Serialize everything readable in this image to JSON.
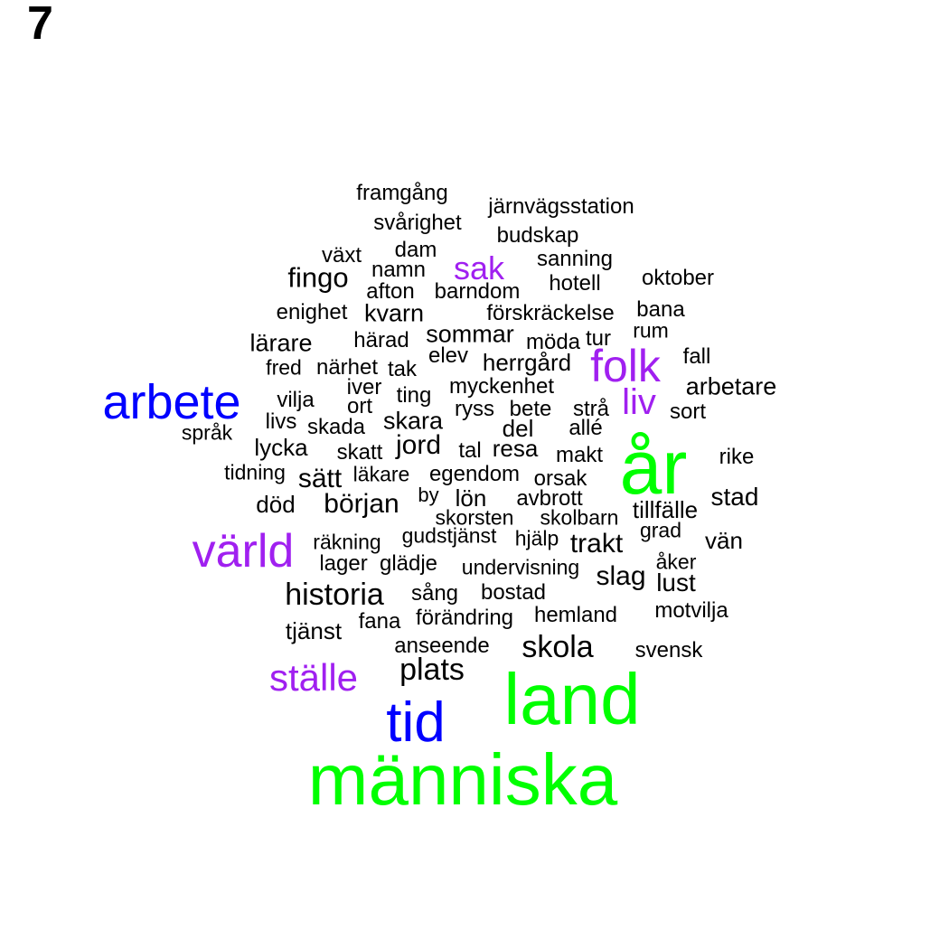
{
  "panel_label": "7",
  "colors": {
    "small": "#000000",
    "medium": "#a020f0",
    "large": "#0000ff",
    "largest": "#00ff00"
  },
  "words": [
    {
      "text": "människa",
      "tier": "largest"
    },
    {
      "text": "land",
      "tier": "largest"
    },
    {
      "text": "år",
      "tier": "largest"
    },
    {
      "text": "tid",
      "tier": "large"
    },
    {
      "text": "arbete",
      "tier": "large"
    },
    {
      "text": "värld",
      "tier": "medium"
    },
    {
      "text": "folk",
      "tier": "medium"
    },
    {
      "text": "ställe",
      "tier": "medium"
    },
    {
      "text": "liv",
      "tier": "medium"
    },
    {
      "text": "sak",
      "tier": "medium"
    },
    {
      "text": "historia",
      "tier": "small"
    },
    {
      "text": "plats",
      "tier": "small"
    },
    {
      "text": "skola",
      "tier": "small"
    },
    {
      "text": "fingo",
      "tier": "small"
    },
    {
      "text": "början",
      "tier": "small"
    },
    {
      "text": "jord",
      "tier": "small"
    },
    {
      "text": "sätt",
      "tier": "small"
    },
    {
      "text": "trakt",
      "tier": "small"
    },
    {
      "text": "slag",
      "tier": "small"
    },
    {
      "text": "stad",
      "tier": "small"
    },
    {
      "text": "lust",
      "tier": "small"
    },
    {
      "text": "arbetare",
      "tier": "small"
    },
    {
      "text": "kvarn",
      "tier": "small"
    },
    {
      "text": "lärare",
      "tier": "small"
    },
    {
      "text": "skara",
      "tier": "small"
    },
    {
      "text": "sommar",
      "tier": "small"
    },
    {
      "text": "herrgård",
      "tier": "small"
    },
    {
      "text": "lön",
      "tier": "small"
    },
    {
      "text": "resa",
      "tier": "small"
    },
    {
      "text": "vän",
      "tier": "small"
    },
    {
      "text": "del",
      "tier": "small"
    },
    {
      "text": "tjänst",
      "tier": "small"
    },
    {
      "text": "död",
      "tier": "small"
    },
    {
      "text": "lycka",
      "tier": "small"
    },
    {
      "text": "framgång",
      "tier": "small"
    },
    {
      "text": "järnvägsstation",
      "tier": "small"
    },
    {
      "text": "svårighet",
      "tier": "small"
    },
    {
      "text": "budskap",
      "tier": "small"
    },
    {
      "text": "växt",
      "tier": "small"
    },
    {
      "text": "dam",
      "tier": "small"
    },
    {
      "text": "sanning",
      "tier": "small"
    },
    {
      "text": "namn",
      "tier": "small"
    },
    {
      "text": "oktober",
      "tier": "small"
    },
    {
      "text": "afton",
      "tier": "small"
    },
    {
      "text": "barndom",
      "tier": "small"
    },
    {
      "text": "hotell",
      "tier": "small"
    },
    {
      "text": "enighet",
      "tier": "small"
    },
    {
      "text": "förskräckelse",
      "tier": "small"
    },
    {
      "text": "bana",
      "tier": "small"
    },
    {
      "text": "rum",
      "tier": "small"
    },
    {
      "text": "härad",
      "tier": "small"
    },
    {
      "text": "möda",
      "tier": "small"
    },
    {
      "text": "tur",
      "tier": "small"
    },
    {
      "text": "elev",
      "tier": "small"
    },
    {
      "text": "fall",
      "tier": "small"
    },
    {
      "text": "fred",
      "tier": "small"
    },
    {
      "text": "närhet",
      "tier": "small"
    },
    {
      "text": "tak",
      "tier": "small"
    },
    {
      "text": "iver",
      "tier": "small"
    },
    {
      "text": "myckenhet",
      "tier": "small"
    },
    {
      "text": "vilja",
      "tier": "small"
    },
    {
      "text": "ting",
      "tier": "small"
    },
    {
      "text": "ort",
      "tier": "small"
    },
    {
      "text": "ryss",
      "tier": "small"
    },
    {
      "text": "bete",
      "tier": "small"
    },
    {
      "text": "strå",
      "tier": "small"
    },
    {
      "text": "sort",
      "tier": "small"
    },
    {
      "text": "livs",
      "tier": "small"
    },
    {
      "text": "skada",
      "tier": "small"
    },
    {
      "text": "allé",
      "tier": "small"
    },
    {
      "text": "språk",
      "tier": "small"
    },
    {
      "text": "skatt",
      "tier": "small"
    },
    {
      "text": "tal",
      "tier": "small"
    },
    {
      "text": "makt",
      "tier": "small"
    },
    {
      "text": "rike",
      "tier": "small"
    },
    {
      "text": "tidning",
      "tier": "small"
    },
    {
      "text": "läkare",
      "tier": "small"
    },
    {
      "text": "egendom",
      "tier": "small"
    },
    {
      "text": "orsak",
      "tier": "small"
    },
    {
      "text": "by",
      "tier": "small"
    },
    {
      "text": "avbrott",
      "tier": "small"
    },
    {
      "text": "tillfälle",
      "tier": "small"
    },
    {
      "text": "skorsten",
      "tier": "small"
    },
    {
      "text": "skolbarn",
      "tier": "small"
    },
    {
      "text": "gudstjänst",
      "tier": "small"
    },
    {
      "text": "grad",
      "tier": "small"
    },
    {
      "text": "räkning",
      "tier": "small"
    },
    {
      "text": "hjälp",
      "tier": "small"
    },
    {
      "text": "åker",
      "tier": "small"
    },
    {
      "text": "lager",
      "tier": "small"
    },
    {
      "text": "glädje",
      "tier": "small"
    },
    {
      "text": "undervisning",
      "tier": "small"
    },
    {
      "text": "sång",
      "tier": "small"
    },
    {
      "text": "bostad",
      "tier": "small"
    },
    {
      "text": "motvilja",
      "tier": "small"
    },
    {
      "text": "fana",
      "tier": "small"
    },
    {
      "text": "förändring",
      "tier": "small"
    },
    {
      "text": "hemland",
      "tier": "small"
    },
    {
      "text": "anseende",
      "tier": "small"
    },
    {
      "text": "svensk",
      "tier": "small"
    }
  ]
}
